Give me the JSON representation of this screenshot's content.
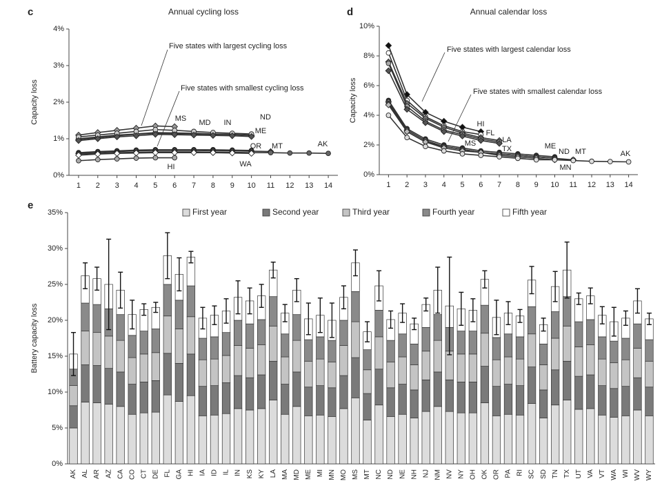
{
  "chart_data": [
    {
      "type": "line",
      "panel": "c",
      "title": "Annual cycling loss",
      "ylabel": "Capacity loss",
      "annotations": [
        "Five states with largest cycling loss",
        "Five states with smallest cycling loss"
      ],
      "x": [
        1,
        2,
        3,
        4,
        5,
        6,
        7,
        8,
        9,
        10,
        11,
        12,
        13,
        14
      ],
      "xlim": [
        0.5,
        14.5
      ],
      "xticks": [
        1,
        2,
        3,
        4,
        5,
        6,
        7,
        8,
        9,
        10,
        11,
        12,
        13,
        14
      ],
      "ylim": [
        0,
        4
      ],
      "yticks": [
        {
          "value": 0,
          "label": "0%"
        },
        {
          "value": 1,
          "label": "1%"
        },
        {
          "value": 2,
          "label": "2%"
        },
        {
          "value": 3,
          "label": "3%"
        },
        {
          "value": 4,
          "label": "4%"
        }
      ],
      "series": [
        {
          "name": "MS",
          "color": "#999999",
          "values": [
            1.1,
            1.17,
            1.23,
            1.29,
            1.35,
            1.33,
            null,
            null,
            null,
            null,
            null,
            null,
            null,
            null
          ]
        },
        {
          "name": "MD",
          "color": "#222222",
          "values": [
            1.0,
            1.05,
            1.1,
            1.13,
            1.17,
            1.16,
            1.15,
            1.13,
            1.12,
            1.1,
            null,
            null,
            null,
            null
          ]
        },
        {
          "name": "IN",
          "color": "#ffffff",
          "values": [
            0.98,
            1.03,
            1.08,
            1.12,
            1.15,
            1.14,
            1.13,
            1.12,
            1.11,
            1.09,
            null,
            null,
            null,
            null
          ]
        },
        {
          "name": "ND",
          "color": "#cccccc",
          "values": [
            1.05,
            1.1,
            1.15,
            1.2,
            1.25,
            1.23,
            1.2,
            1.17,
            1.15,
            1.13,
            null,
            null,
            null,
            null
          ]
        },
        {
          "name": "ME",
          "color": "#555555",
          "values": [
            0.95,
            1.0,
            1.05,
            1.08,
            1.12,
            1.11,
            1.1,
            1.09,
            1.08,
            1.06,
            null,
            null,
            null,
            null
          ]
        },
        {
          "name": "OR",
          "color": "#222222",
          "values": [
            0.62,
            0.65,
            0.67,
            0.69,
            0.7,
            0.7,
            0.7,
            0.7,
            0.69,
            0.68,
            null,
            null,
            null,
            null
          ]
        },
        {
          "name": "MT",
          "color": "#555555",
          "values": [
            0.6,
            0.63,
            0.65,
            0.67,
            0.68,
            0.68,
            0.68,
            0.67,
            0.67,
            0.66,
            0.65,
            null,
            null,
            null
          ]
        },
        {
          "name": "AK",
          "color": "#666666",
          "values": [
            0.58,
            0.6,
            0.62,
            0.63,
            0.64,
            0.64,
            0.64,
            0.63,
            0.63,
            0.62,
            0.62,
            0.61,
            0.61,
            0.6
          ]
        },
        {
          "name": "WA",
          "color": "#ffffff",
          "values": [
            0.55,
            0.58,
            0.6,
            0.61,
            0.62,
            0.62,
            0.62,
            0.62,
            0.61,
            0.6,
            null,
            null,
            null,
            null
          ]
        },
        {
          "name": "HI",
          "color": "#aaaaaa",
          "values": [
            0.4,
            0.43,
            0.45,
            0.47,
            0.48,
            0.48,
            null,
            null,
            null,
            null,
            null,
            null,
            null,
            null
          ]
        }
      ]
    },
    {
      "type": "line",
      "panel": "d",
      "title": "Annual calendar loss",
      "ylabel": "Capacity loss",
      "annotations": [
        "Five states with largest calendar loss",
        "Five states with smallest calendar loss"
      ],
      "x": [
        1,
        2,
        3,
        4,
        5,
        6,
        7,
        8,
        9,
        10,
        11,
        12,
        13,
        14
      ],
      "xlim": [
        0.5,
        14.5
      ],
      "xticks": [
        1,
        2,
        3,
        4,
        5,
        6,
        7,
        8,
        9,
        10,
        11,
        12,
        13,
        14
      ],
      "ylim": [
        0,
        10
      ],
      "yticks": [
        {
          "value": 0,
          "label": "0%"
        },
        {
          "value": 2,
          "label": "2%"
        },
        {
          "value": 4,
          "label": "4%"
        },
        {
          "value": 6,
          "label": "6%"
        },
        {
          "value": 8,
          "label": "8%"
        },
        {
          "value": 10,
          "label": "10%"
        }
      ],
      "series": [
        {
          "name": "HI",
          "color": "#111111",
          "values": [
            8.7,
            5.4,
            4.2,
            3.6,
            3.2,
            2.9,
            null,
            null,
            null,
            null,
            null,
            null,
            null,
            null
          ]
        },
        {
          "name": "FL",
          "color": "#ffffff",
          "values": [
            8.2,
            5.0,
            3.9,
            3.3,
            2.9,
            2.7,
            null,
            null,
            null,
            null,
            null,
            null,
            null,
            null
          ]
        },
        {
          "name": "LA",
          "color": "#777777",
          "values": [
            7.6,
            4.8,
            3.8,
            3.2,
            2.8,
            2.5,
            2.3,
            null,
            null,
            null,
            null,
            null,
            null,
            null
          ]
        },
        {
          "name": "MS",
          "color": "#aaaaaa",
          "values": [
            7.5,
            4.6,
            3.6,
            3.0,
            2.7,
            2.4,
            2.2,
            null,
            null,
            null,
            null,
            null,
            null,
            null
          ]
        },
        {
          "name": "TX",
          "color": "#555555",
          "values": [
            7.0,
            4.4,
            3.5,
            2.9,
            2.6,
            2.3,
            2.1,
            null,
            null,
            null,
            null,
            null,
            null,
            null
          ]
        },
        {
          "name": "ME",
          "color": "#333333",
          "values": [
            5.0,
            3.1,
            2.4,
            2.0,
            1.8,
            1.6,
            1.5,
            1.4,
            1.3,
            1.2,
            null,
            null,
            null,
            null
          ]
        },
        {
          "name": "ND",
          "color": "#888888",
          "values": [
            4.9,
            3.0,
            2.3,
            1.9,
            1.7,
            1.5,
            1.4,
            1.3,
            1.2,
            1.1,
            null,
            null,
            null,
            null
          ]
        },
        {
          "name": "MT",
          "color": "#555555",
          "values": [
            4.8,
            2.9,
            2.2,
            1.9,
            1.7,
            1.5,
            1.4,
            1.3,
            1.2,
            1.1,
            1.0,
            null,
            null,
            null
          ]
        },
        {
          "name": "MN",
          "color": "#bbbbbb",
          "values": [
            4.7,
            2.9,
            2.2,
            1.8,
            1.6,
            1.5,
            1.3,
            1.2,
            1.1,
            1.0,
            1.0,
            null,
            null,
            null
          ]
        },
        {
          "name": "AK",
          "color": "#dddddd",
          "values": [
            4.0,
            2.5,
            1.9,
            1.6,
            1.4,
            1.3,
            1.2,
            1.1,
            1.0,
            1.0,
            0.95,
            0.9,
            0.88,
            0.86
          ]
        }
      ]
    },
    {
      "type": "bar",
      "panel": "e",
      "ylabel": "Battery capacity loss",
      "stacked": true,
      "categories": [
        "AK",
        "AL",
        "AR",
        "AZ",
        "CA",
        "CO",
        "CT",
        "DE",
        "FL",
        "GA",
        "HI",
        "IA",
        "ID",
        "IL",
        "IN",
        "KS",
        "KY",
        "LA",
        "MA",
        "MD",
        "ME",
        "MI",
        "MN",
        "MO",
        "MS",
        "MT",
        "NC",
        "ND",
        "NE",
        "NH",
        "NJ",
        "NM",
        "NV",
        "NY",
        "OH",
        "OK",
        "OR",
        "PA",
        "RI",
        "SC",
        "SD",
        "TN",
        "TX",
        "UT",
        "VA",
        "VT",
        "WA",
        "WI",
        "WV",
        "WY"
      ],
      "ylim": [
        0,
        35
      ],
      "yticks": [
        {
          "value": 0,
          "label": "0%"
        },
        {
          "value": 5,
          "label": "5%"
        },
        {
          "value": 10,
          "label": "10%"
        },
        {
          "value": 15,
          "label": "15%"
        },
        {
          "value": 20,
          "label": "20%"
        },
        {
          "value": 25,
          "label": "25%"
        },
        {
          "value": 30,
          "label": "30%"
        },
        {
          "value": 35,
          "label": "35%"
        }
      ],
      "series": [
        {
          "name": "First year",
          "color": "#dcdcdc",
          "values": [
            5.0,
            8.6,
            8.5,
            8.3,
            8.0,
            6.9,
            7.1,
            7.2,
            9.6,
            8.7,
            9.5,
            6.7,
            6.8,
            7.0,
            7.7,
            7.5,
            7.7,
            8.9,
            6.9,
            8.0,
            6.7,
            6.8,
            6.6,
            7.7,
            9.2,
            6.1,
            8.2,
            6.6,
            6.9,
            6.4,
            7.3,
            8.0,
            7.3,
            7.1,
            7.1,
            8.5,
            6.7,
            6.9,
            6.8,
            8.4,
            6.4,
            8.2,
            8.9,
            7.6,
            7.7,
            6.8,
            6.5,
            6.7,
            7.5,
            6.7
          ]
        },
        {
          "name": "Second year",
          "color": "#7a7a7a",
          "values": [
            3.1,
            5.2,
            5.2,
            5.0,
            4.8,
            4.2,
            4.3,
            4.4,
            5.8,
            5.3,
            5.8,
            4.1,
            4.1,
            4.3,
            4.6,
            4.5,
            4.7,
            5.4,
            4.2,
            4.8,
            4.0,
            4.1,
            4.0,
            4.6,
            5.6,
            3.7,
            5.0,
            4.0,
            4.2,
            3.9,
            4.4,
            4.8,
            4.4,
            4.3,
            4.3,
            5.1,
            4.1,
            4.2,
            4.1,
            5.1,
            3.9,
            4.9,
            5.4,
            4.6,
            4.7,
            4.1,
            4.0,
            4.1,
            4.5,
            4.0
          ]
        },
        {
          "name": "Third year",
          "color": "#c4c4c4",
          "values": [
            2.8,
            4.7,
            4.6,
            4.5,
            4.4,
            3.7,
            3.9,
            3.9,
            5.2,
            4.8,
            5.2,
            3.7,
            3.7,
            3.8,
            4.2,
            4.1,
            4.2,
            4.9,
            3.8,
            4.4,
            3.6,
            3.7,
            3.6,
            4.2,
            5.0,
            3.3,
            4.5,
            3.6,
            3.8,
            3.5,
            4.0,
            4.4,
            4.0,
            3.9,
            3.9,
            4.6,
            3.7,
            3.8,
            3.7,
            4.6,
            3.5,
            4.4,
            4.9,
            4.1,
            4.2,
            3.7,
            3.6,
            3.7,
            4.1,
            3.6
          ]
        },
        {
          "name": "Fourth year",
          "color": "#8a8a8a",
          "values": [
            2.3,
            3.9,
            3.9,
            3.8,
            3.6,
            3.1,
            3.2,
            3.3,
            4.4,
            4.0,
            4.3,
            3.0,
            3.1,
            3.2,
            3.5,
            3.4,
            3.5,
            4.1,
            3.2,
            3.6,
            3.0,
            3.1,
            3.0,
            3.5,
            4.2,
            2.8,
            3.7,
            3.0,
            3.2,
            2.9,
            3.3,
            3.6,
            3.3,
            3.2,
            3.2,
            3.9,
            3.1,
            3.2,
            3.1,
            3.8,
            2.9,
            3.7,
            4.1,
            3.5,
            3.5,
            3.1,
            3.0,
            3.0,
            3.4,
            3.0
          ]
        },
        {
          "name": "Fifth year",
          "color": "#ffffff",
          "values": [
            2.1,
            3.8,
            3.6,
            3.4,
            3.4,
            2.9,
            3.0,
            3.0,
            4.0,
            3.6,
            4.0,
            2.8,
            3.0,
            3.0,
            3.2,
            3.2,
            3.3,
            3.7,
            2.9,
            3.4,
            2.9,
            3.0,
            2.8,
            3.2,
            4.0,
            2.5,
            3.4,
            2.9,
            2.9,
            2.8,
            3.2,
            3.4,
            3.0,
            3.1,
            2.9,
            3.6,
            2.8,
            2.9,
            2.9,
            3.7,
            2.7,
            3.5,
            3.7,
            3.2,
            3.3,
            3.0,
            2.7,
            2.8,
            3.2,
            2.9
          ]
        }
      ],
      "errors": [
        3.0,
        1.8,
        1.6,
        6.3,
        2.5,
        2.0,
        0.8,
        0.7,
        3.2,
        2.3,
        0.8,
        1.5,
        1.3,
        1.7,
        2.3,
        1.8,
        1.6,
        1.1,
        1.2,
        1.6,
        2.2,
        2.4,
        2.4,
        1.6,
        1.8,
        1.4,
        2.1,
        1.2,
        1.3,
        0.8,
        0.9,
        3.2,
        6.8,
        2.3,
        1.6,
        1.2,
        2.4,
        1.6,
        0.9,
        1.9,
        0.9,
        2.1,
        3.9,
        0.8,
        1.1,
        1.2,
        2.0,
        1.0,
        1.7,
        0.8
      ]
    }
  ]
}
